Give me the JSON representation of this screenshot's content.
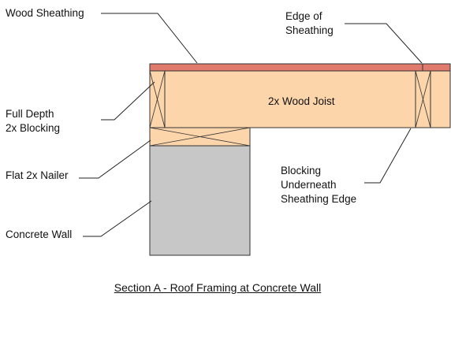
{
  "colors": {
    "sheathing": "#e07a6c",
    "wood": "#fcd5ab",
    "concrete": "#c7c7c7",
    "outline": "#333333",
    "leader": "#222222"
  },
  "labels": {
    "wood_sheathing": "Wood Sheathing",
    "edge_of_sheathing": [
      "Edge of",
      "Sheathing"
    ],
    "full_depth_blocking": [
      "Full Depth",
      "2x Blocking"
    ],
    "flat_nailer": "Flat 2x Nailer",
    "concrete_wall": "Concrete Wall",
    "blocking_underneath": [
      "Blocking",
      "Underneath",
      "Sheathing Edge"
    ],
    "joist": "2x Wood Joist"
  },
  "caption": "Section A - Roof Framing at Concrete Wall"
}
